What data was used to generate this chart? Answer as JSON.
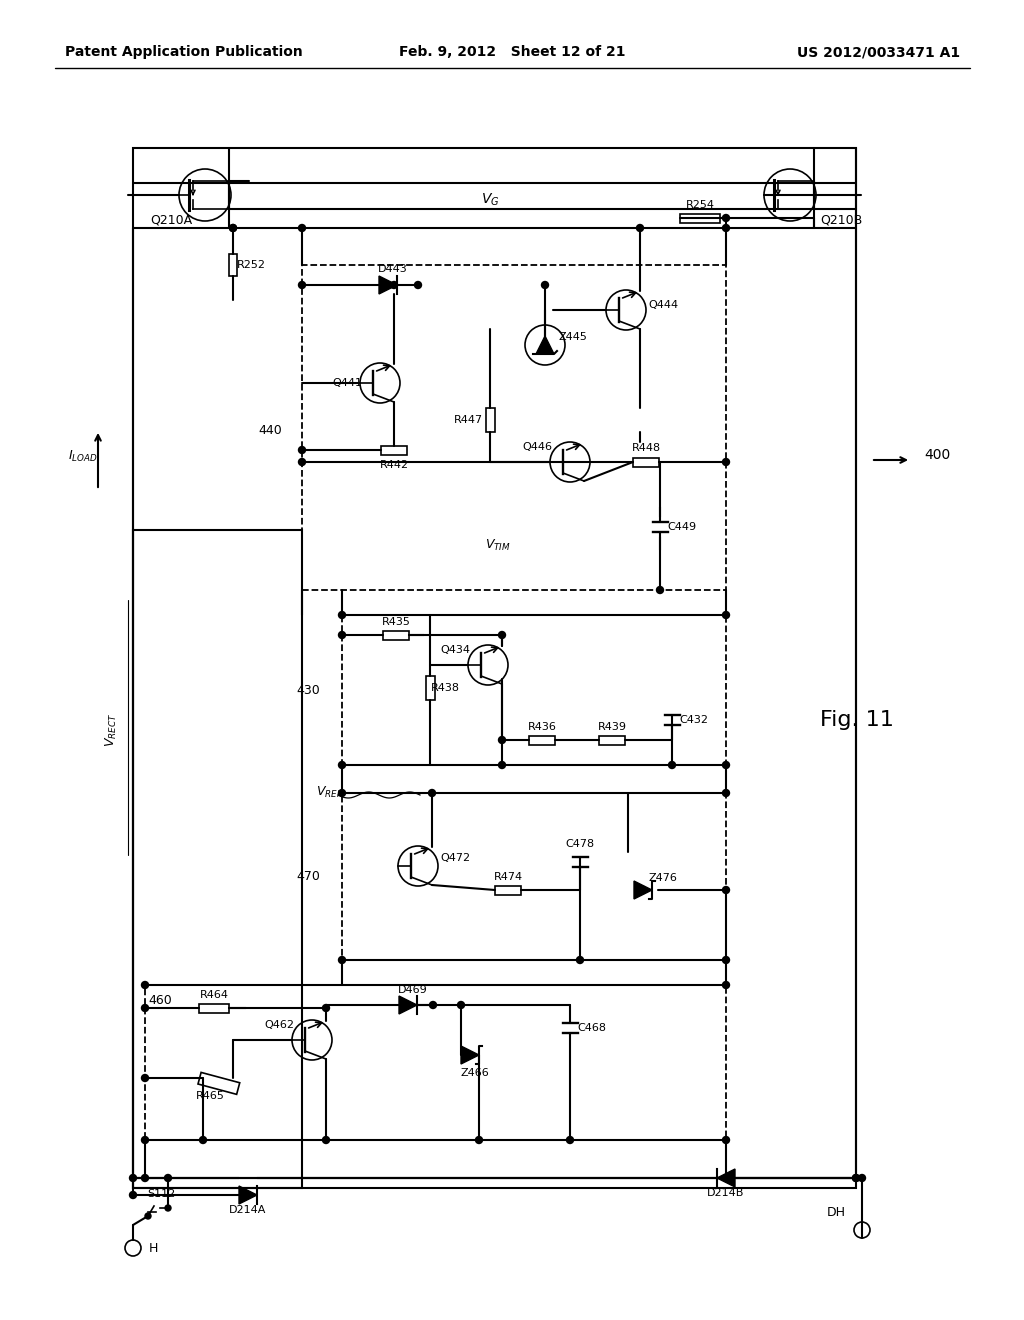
{
  "bg_color": "#ffffff",
  "header_left": "Patent Application Publication",
  "header_center": "Feb. 9, 2012   Sheet 12 of 21",
  "header_right": "US 2012/0033471 A1",
  "fig_label": "Fig. 11"
}
